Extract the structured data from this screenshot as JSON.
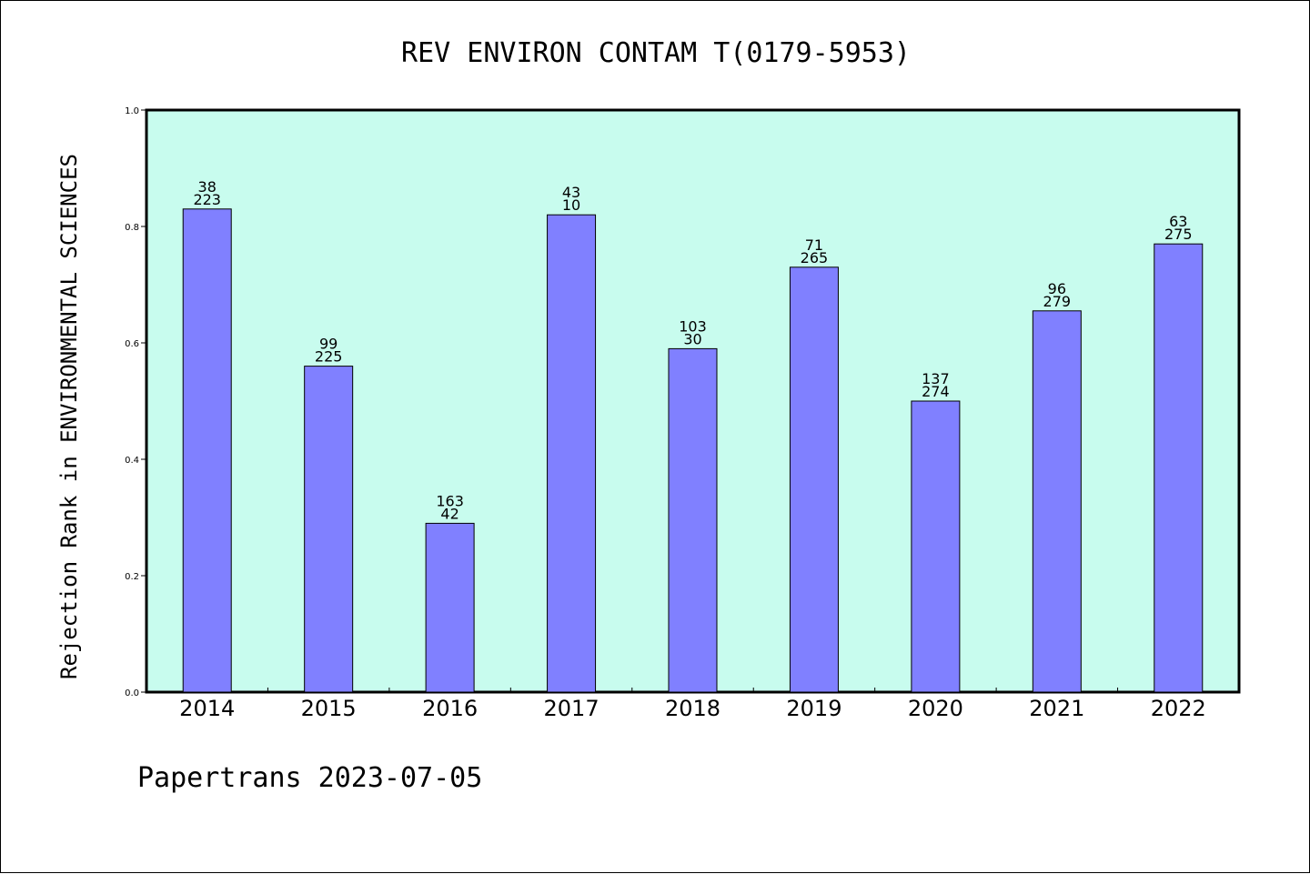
{
  "chart_data": {
    "type": "bar",
    "title": "REV ENVIRON CONTAM T(0179-5953)",
    "ylabel": "Rejection Rank in ENVIRONMENTAL SCIENCES",
    "xlabel": "",
    "categories": [
      "2014",
      "2015",
      "2016",
      "2017",
      "2018",
      "2019",
      "2020",
      "2021",
      "2022"
    ],
    "values": [
      0.83,
      0.56,
      0.29,
      0.82,
      0.59,
      0.73,
      0.5,
      0.655,
      0.77
    ],
    "bar_labels_top": [
      "38",
      "99",
      "163",
      "43",
      "103",
      "71",
      "137",
      "96",
      "63"
    ],
    "bar_labels_bottom": [
      "223",
      "225",
      "42",
      "10",
      "30",
      "265",
      "274",
      "279",
      "275"
    ],
    "ylim": [
      0,
      1.0
    ],
    "yticks": [
      "0.0",
      "0.2",
      "0.4",
      "0.6",
      "0.8",
      "1.0"
    ],
    "grid": false,
    "colors": {
      "plot_background": "#c8fcee",
      "bar_fill": "#8080ff",
      "bar_stroke": "#000000"
    }
  },
  "footer": {
    "text": "Papertrans 2023-07-05"
  }
}
